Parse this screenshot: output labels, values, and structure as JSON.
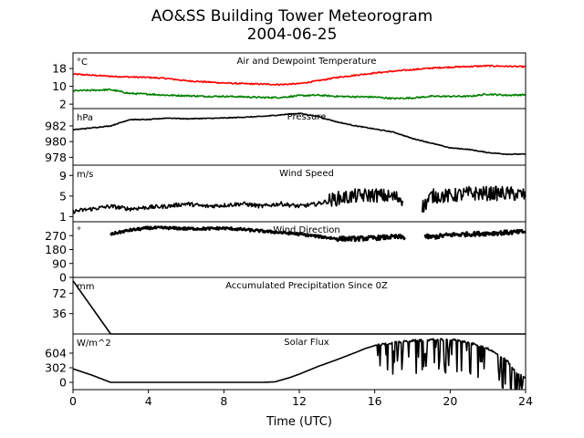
{
  "title_line1": "AO&SS Building Tower Meteorogram",
  "title_line2": "2004-06-25",
  "xlabel": "Time (UTC)",
  "colors": {
    "temperature": "#ff0000",
    "dewpoint": "#008000",
    "default": "#000000"
  },
  "chart_data": {
    "type": "line",
    "title": "AO&SS Building Tower Meteorogram 2004-06-25",
    "xlabel": "Time (UTC)",
    "xlim": [
      0,
      24
    ],
    "x_ticks": [
      0,
      4,
      8,
      12,
      16,
      20,
      24
    ],
    "panels": [
      {
        "key": "temp",
        "title": "Air and Dewpoint Temperature",
        "unit": "°C",
        "ylim": [
          0,
          25
        ],
        "y_ticks": [
          2,
          10,
          18
        ],
        "series": [
          {
            "color": "#ff0000",
            "noise": 0.3,
            "points": [
              [
                0,
                15.5
              ],
              [
                1,
                15
              ],
              [
                2,
                14.5
              ],
              [
                3,
                14.2
              ],
              [
                4,
                14
              ],
              [
                5,
                13.5
              ],
              [
                6,
                12.5
              ],
              [
                7,
                12
              ],
              [
                8,
                11.5
              ],
              [
                9,
                11.2
              ],
              [
                10,
                11
              ],
              [
                11,
                10.8
              ],
              [
                12,
                11.2
              ],
              [
                13,
                12.5
              ],
              [
                14,
                14
              ],
              [
                15,
                15
              ],
              [
                16,
                16
              ],
              [
                17,
                16.8
              ],
              [
                18,
                17.5
              ],
              [
                19,
                18.2
              ],
              [
                20,
                18.6
              ],
              [
                21,
                18.9
              ],
              [
                22,
                19.2
              ],
              [
                23,
                19
              ],
              [
                24,
                18.8
              ]
            ]
          },
          {
            "color": "#008000",
            "noise": 0.35,
            "points": [
              [
                0,
                8
              ],
              [
                1,
                8.2
              ],
              [
                2,
                8.5
              ],
              [
                3,
                6.8
              ],
              [
                4,
                6.5
              ],
              [
                5,
                6
              ],
              [
                6,
                5.8
              ],
              [
                7,
                5.5
              ],
              [
                8,
                5.5
              ],
              [
                9,
                5.3
              ],
              [
                10,
                5
              ],
              [
                11,
                5
              ],
              [
                12,
                5.8
              ],
              [
                13,
                6
              ],
              [
                14,
                5.5
              ],
              [
                15,
                5.3
              ],
              [
                16,
                5.2
              ],
              [
                17,
                4.5
              ],
              [
                18,
                4.8
              ],
              [
                19,
                5.5
              ],
              [
                20,
                5.5
              ],
              [
                21,
                5.5
              ],
              [
                22,
                6.5
              ],
              [
                23,
                6
              ],
              [
                24,
                6.2
              ]
            ]
          }
        ]
      },
      {
        "key": "pressure",
        "title": "Pressure",
        "unit": "hPa",
        "ylim": [
          977,
          984.2
        ],
        "y_ticks": [
          978,
          980,
          982
        ],
        "series": [
          {
            "color": "#000000",
            "noise": 0.05,
            "points": [
              [
                0,
                981.5
              ],
              [
                2,
                982
              ],
              [
                3,
                982.8
              ],
              [
                4,
                982.8
              ],
              [
                5,
                983
              ],
              [
                6,
                982.9
              ],
              [
                8,
                983
              ],
              [
                10,
                983.2
              ],
              [
                12,
                983.6
              ],
              [
                13,
                983.2
              ],
              [
                14,
                982.5
              ],
              [
                15,
                982
              ],
              [
                16,
                981.6
              ],
              [
                17,
                981.2
              ],
              [
                18,
                980.4
              ],
              [
                19,
                979.8
              ],
              [
                20,
                979.2
              ],
              [
                21,
                979
              ],
              [
                22,
                978.6
              ],
              [
                23,
                978.4
              ],
              [
                24,
                978.4
              ]
            ]
          }
        ]
      },
      {
        "key": "wind_speed",
        "title": "Wind Speed",
        "unit": "m/s",
        "ylim": [
          0,
          11
        ],
        "y_ticks": [
          1,
          5,
          9
        ],
        "series": [
          {
            "color": "#000000",
            "noise": 0.4,
            "noise_after": 13.5,
            "noise_after_amp": 1.4,
            "gap": [
              17.5,
              18.5
            ],
            "points": [
              [
                0,
                2
              ],
              [
                1,
                2.5
              ],
              [
                2,
                3
              ],
              [
                3,
                2.5
              ],
              [
                4,
                2.8
              ],
              [
                5,
                3
              ],
              [
                6,
                3.5
              ],
              [
                7,
                3
              ],
              [
                8,
                3.2
              ],
              [
                9,
                3.5
              ],
              [
                10,
                3
              ],
              [
                11,
                3.5
              ],
              [
                12,
                3
              ],
              [
                13,
                3.5
              ],
              [
                14,
                4.5
              ],
              [
                15,
                5
              ],
              [
                16,
                5.2
              ],
              [
                17,
                4.8
              ],
              [
                17.4,
                4.5
              ],
              [
                18.6,
                3
              ],
              [
                19,
                5
              ],
              [
                20,
                5
              ],
              [
                21,
                5.5
              ],
              [
                22,
                5.5
              ],
              [
                23,
                5.5
              ],
              [
                24,
                5.2
              ]
            ]
          }
        ]
      },
      {
        "key": "wind_dir",
        "title": "Wind Direction",
        "unit": "°",
        "ylim": [
          0,
          360
        ],
        "y_ticks": [
          0,
          90,
          180,
          270
        ],
        "series": [
          {
            "color": "#000000",
            "noise": 8,
            "noise_after": 14,
            "noise_after_amp": 14,
            "gap": [
              17.6,
              18.6
            ],
            "points": [
              [
                2,
                280
              ],
              [
                3,
                305
              ],
              [
                4,
                320
              ],
              [
                5,
                320
              ],
              [
                6,
                315
              ],
              [
                7,
                315
              ],
              [
                8,
                318
              ],
              [
                9,
                310
              ],
              [
                10,
                300
              ],
              [
                11,
                290
              ],
              [
                12,
                280
              ],
              [
                13,
                265
              ],
              [
                14,
                250
              ],
              [
                15,
                250
              ],
              [
                16,
                255
              ],
              [
                17,
                262
              ],
              [
                17.5,
                260
              ],
              [
                18.7,
                265
              ],
              [
                19,
                260
              ],
              [
                20,
                275
              ],
              [
                21,
                280
              ],
              [
                22,
                285
              ],
              [
                23,
                290
              ],
              [
                24,
                295
              ]
            ]
          }
        ]
      },
      {
        "key": "precip",
        "title": "Accumulated Precipitation Since 0Z",
        "unit": "mm",
        "ylim": [
          0,
          100
        ],
        "y_ticks": [
          36,
          72
        ],
        "series": [
          {
            "color": "#000000",
            "noise": 0,
            "points": [
              [
                0,
                94
              ],
              [
                2,
                0
              ],
              [
                24,
                0
              ]
            ]
          }
        ]
      },
      {
        "key": "solar",
        "title": "Solar Flux",
        "unit": "W/m^2",
        "ylim": [
          -150,
          1000
        ],
        "y_ticks": [
          0,
          302,
          604
        ],
        "series": [
          {
            "color": "#000000",
            "noise": 0,
            "noise_after": 16,
            "noise_after_amp": 300,
            "noise_dips": true,
            "points": [
              [
                0,
                280
              ],
              [
                1,
                150
              ],
              [
                2,
                0
              ],
              [
                4,
                0
              ],
              [
                6,
                0
              ],
              [
                8,
                0
              ],
              [
                10,
                0
              ],
              [
                10.7,
                10
              ],
              [
                11.5,
                100
              ],
              [
                12,
                170
              ],
              [
                13,
                330
              ],
              [
                14,
                470
              ],
              [
                15,
                620
              ],
              [
                15.5,
                700
              ],
              [
                16,
                760
              ],
              [
                17,
                820
              ],
              [
                18,
                860
              ],
              [
                19,
                880
              ],
              [
                20,
                880
              ],
              [
                20.5,
                870
              ],
              [
                21,
                820
              ],
              [
                22,
                700
              ],
              [
                23,
                450
              ],
              [
                23.5,
                200
              ],
              [
                24,
                100
              ]
            ]
          }
        ]
      }
    ]
  }
}
